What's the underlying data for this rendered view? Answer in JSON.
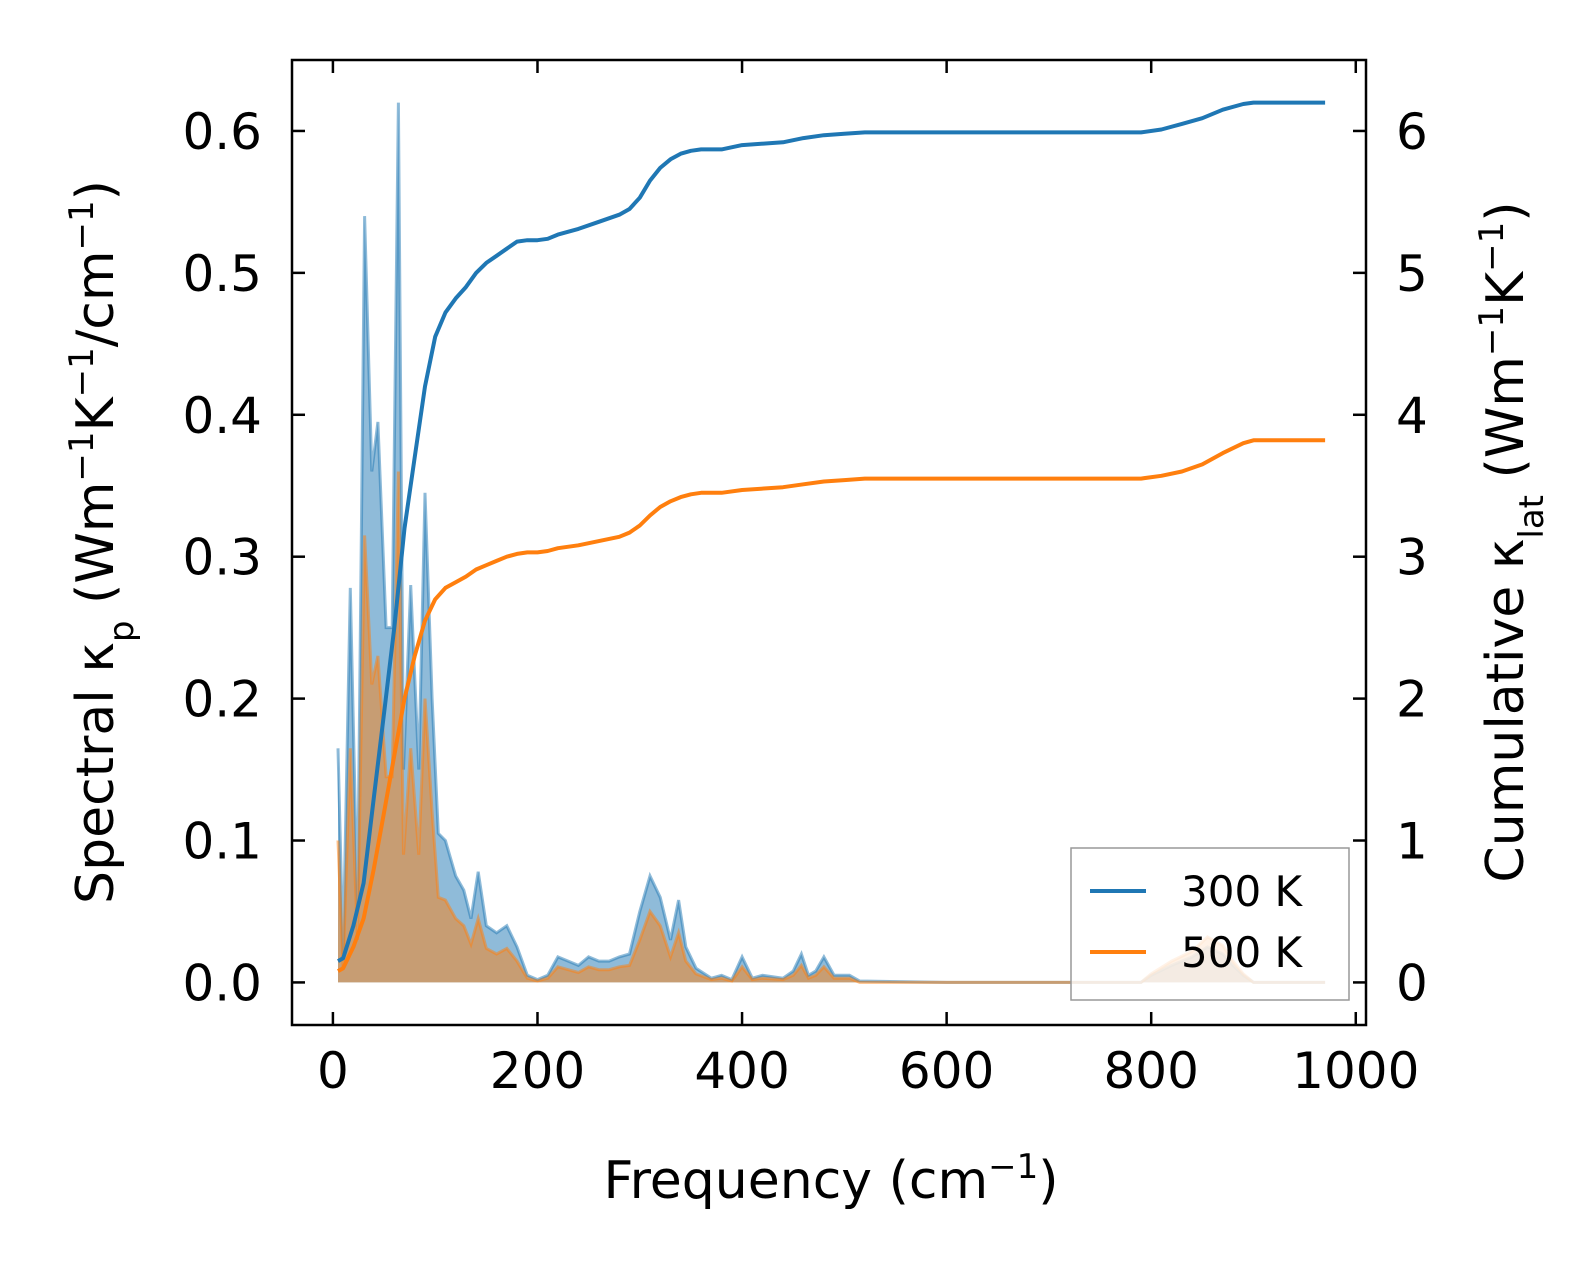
{
  "chart_data": {
    "type": "area+line (dual axis)",
    "xlabel": "Frequency (cm⁻¹)",
    "ylabel_left": "Spectral κₚ (Wm⁻¹K⁻¹/cm⁻¹)",
    "ylabel_right": "Cumulative κₗₐₜ (Wm⁻¹K⁻¹)",
    "xlim": [
      -40,
      1010
    ],
    "ylim_left": [
      -0.03,
      0.65
    ],
    "ylim_right": [
      -0.3,
      6.5
    ],
    "xticks": [
      0,
      200,
      400,
      600,
      800,
      1000
    ],
    "xtick_labels": [
      "0",
      "200",
      "400",
      "600",
      "800",
      "1000"
    ],
    "yticks_left": [
      0.0,
      0.1,
      0.2,
      0.3,
      0.4,
      0.5,
      0.6
    ],
    "ytick_labels_left": [
      "0.0",
      "0.1",
      "0.2",
      "0.3",
      "0.4",
      "0.5",
      "0.6"
    ],
    "yticks_right": [
      0,
      1,
      2,
      3,
      4,
      5,
      6
    ],
    "ytick_labels_right": [
      "0",
      "1",
      "2",
      "3",
      "4",
      "5",
      "6"
    ],
    "legend": {
      "position": "lower-right",
      "entries": [
        "300 K",
        "500 K"
      ]
    },
    "series": [
      {
        "name": "300 K",
        "color": "#1f77b4",
        "spectral": [
          [
            5,
            0.165
          ],
          [
            10,
            0.02
          ],
          [
            17,
            0.278
          ],
          [
            24,
            0.05
          ],
          [
            31,
            0.54
          ],
          [
            38,
            0.36
          ],
          [
            44,
            0.395
          ],
          [
            52,
            0.25
          ],
          [
            58,
            0.25
          ],
          [
            64,
            0.62
          ],
          [
            69,
            0.15
          ],
          [
            76,
            0.28
          ],
          [
            84,
            0.15
          ],
          [
            90,
            0.345
          ],
          [
            97,
            0.2
          ],
          [
            103,
            0.105
          ],
          [
            110,
            0.1
          ],
          [
            120,
            0.075
          ],
          [
            128,
            0.065
          ],
          [
            135,
            0.045
          ],
          [
            142,
            0.078
          ],
          [
            150,
            0.04
          ],
          [
            160,
            0.035
          ],
          [
            170,
            0.04
          ],
          [
            180,
            0.025
          ],
          [
            190,
            0.005
          ],
          [
            200,
            0.002
          ],
          [
            210,
            0.005
          ],
          [
            220,
            0.018
          ],
          [
            230,
            0.015
          ],
          [
            240,
            0.012
          ],
          [
            250,
            0.018
          ],
          [
            260,
            0.015
          ],
          [
            270,
            0.015
          ],
          [
            280,
            0.018
          ],
          [
            290,
            0.02
          ],
          [
            300,
            0.05
          ],
          [
            310,
            0.075
          ],
          [
            320,
            0.06
          ],
          [
            330,
            0.03
          ],
          [
            338,
            0.058
          ],
          [
            345,
            0.025
          ],
          [
            355,
            0.01
          ],
          [
            370,
            0.003
          ],
          [
            380,
            0.005
          ],
          [
            390,
            0.002
          ],
          [
            400,
            0.018
          ],
          [
            410,
            0.003
          ],
          [
            420,
            0.005
          ],
          [
            440,
            0.003
          ],
          [
            450,
            0.008
          ],
          [
            458,
            0.02
          ],
          [
            465,
            0.005
          ],
          [
            472,
            0.008
          ],
          [
            480,
            0.018
          ],
          [
            490,
            0.005
          ],
          [
            505,
            0.005
          ],
          [
            515,
            0.001
          ],
          [
            600,
            0.0
          ],
          [
            700,
            0.0
          ],
          [
            790,
            0.0
          ],
          [
            800,
            0.005
          ],
          [
            820,
            0.012
          ],
          [
            840,
            0.018
          ],
          [
            855,
            0.025
          ],
          [
            870,
            0.02
          ],
          [
            880,
            0.012
          ],
          [
            890,
            0.005
          ],
          [
            900,
            0.0
          ],
          [
            970,
            0.0
          ]
        ],
        "cumulative": [
          [
            5,
            0.15
          ],
          [
            10,
            0.17
          ],
          [
            20,
            0.4
          ],
          [
            30,
            0.7
          ],
          [
            40,
            1.3
          ],
          [
            50,
            1.9
          ],
          [
            60,
            2.5
          ],
          [
            70,
            3.2
          ],
          [
            80,
            3.7
          ],
          [
            90,
            4.2
          ],
          [
            100,
            4.55
          ],
          [
            110,
            4.72
          ],
          [
            120,
            4.82
          ],
          [
            130,
            4.9
          ],
          [
            140,
            5.0
          ],
          [
            150,
            5.07
          ],
          [
            160,
            5.12
          ],
          [
            170,
            5.17
          ],
          [
            180,
            5.22
          ],
          [
            190,
            5.23
          ],
          [
            200,
            5.23
          ],
          [
            210,
            5.24
          ],
          [
            220,
            5.27
          ],
          [
            240,
            5.31
          ],
          [
            260,
            5.36
          ],
          [
            280,
            5.41
          ],
          [
            290,
            5.45
          ],
          [
            300,
            5.53
          ],
          [
            310,
            5.65
          ],
          [
            320,
            5.74
          ],
          [
            330,
            5.8
          ],
          [
            340,
            5.84
          ],
          [
            350,
            5.86
          ],
          [
            360,
            5.87
          ],
          [
            380,
            5.87
          ],
          [
            400,
            5.9
          ],
          [
            440,
            5.92
          ],
          [
            460,
            5.95
          ],
          [
            480,
            5.97
          ],
          [
            500,
            5.98
          ],
          [
            520,
            5.99
          ],
          [
            600,
            5.99
          ],
          [
            700,
            5.99
          ],
          [
            790,
            5.99
          ],
          [
            810,
            6.01
          ],
          [
            830,
            6.05
          ],
          [
            850,
            6.09
          ],
          [
            870,
            6.15
          ],
          [
            890,
            6.19
          ],
          [
            900,
            6.2
          ],
          [
            970,
            6.2
          ]
        ]
      },
      {
        "name": "500 K",
        "color": "#ff7f0e",
        "spectral": [
          [
            5,
            0.1
          ],
          [
            10,
            0.01
          ],
          [
            17,
            0.165
          ],
          [
            24,
            0.03
          ],
          [
            31,
            0.315
          ],
          [
            38,
            0.21
          ],
          [
            44,
            0.23
          ],
          [
            52,
            0.145
          ],
          [
            58,
            0.145
          ],
          [
            64,
            0.36
          ],
          [
            69,
            0.09
          ],
          [
            76,
            0.165
          ],
          [
            84,
            0.09
          ],
          [
            90,
            0.2
          ],
          [
            97,
            0.12
          ],
          [
            103,
            0.06
          ],
          [
            110,
            0.058
          ],
          [
            120,
            0.045
          ],
          [
            128,
            0.04
          ],
          [
            135,
            0.027
          ],
          [
            142,
            0.045
          ],
          [
            150,
            0.024
          ],
          [
            160,
            0.02
          ],
          [
            170,
            0.024
          ],
          [
            180,
            0.015
          ],
          [
            190,
            0.003
          ],
          [
            200,
            0.001
          ],
          [
            210,
            0.003
          ],
          [
            220,
            0.011
          ],
          [
            230,
            0.009
          ],
          [
            240,
            0.007
          ],
          [
            250,
            0.011
          ],
          [
            260,
            0.009
          ],
          [
            270,
            0.009
          ],
          [
            280,
            0.011
          ],
          [
            290,
            0.012
          ],
          [
            300,
            0.03
          ],
          [
            310,
            0.05
          ],
          [
            320,
            0.04
          ],
          [
            330,
            0.018
          ],
          [
            338,
            0.035
          ],
          [
            345,
            0.015
          ],
          [
            355,
            0.006
          ],
          [
            370,
            0.002
          ],
          [
            380,
            0.003
          ],
          [
            390,
            0.001
          ],
          [
            400,
            0.011
          ],
          [
            410,
            0.002
          ],
          [
            420,
            0.003
          ],
          [
            440,
            0.002
          ],
          [
            450,
            0.005
          ],
          [
            458,
            0.012
          ],
          [
            465,
            0.003
          ],
          [
            472,
            0.005
          ],
          [
            480,
            0.011
          ],
          [
            490,
            0.003
          ],
          [
            505,
            0.003
          ],
          [
            515,
            0.0
          ],
          [
            600,
            0.0
          ],
          [
            700,
            0.0
          ],
          [
            790,
            0.0
          ],
          [
            800,
            0.006
          ],
          [
            820,
            0.015
          ],
          [
            840,
            0.022
          ],
          [
            855,
            0.032
          ],
          [
            870,
            0.026
          ],
          [
            880,
            0.015
          ],
          [
            890,
            0.006
          ],
          [
            900,
            0.0
          ],
          [
            970,
            0.0
          ]
        ],
        "cumulative": [
          [
            5,
            0.08
          ],
          [
            10,
            0.1
          ],
          [
            20,
            0.25
          ],
          [
            30,
            0.45
          ],
          [
            40,
            0.8
          ],
          [
            50,
            1.2
          ],
          [
            60,
            1.6
          ],
          [
            70,
            2.0
          ],
          [
            80,
            2.3
          ],
          [
            90,
            2.55
          ],
          [
            100,
            2.7
          ],
          [
            110,
            2.78
          ],
          [
            120,
            2.82
          ],
          [
            130,
            2.86
          ],
          [
            140,
            2.91
          ],
          [
            150,
            2.94
          ],
          [
            160,
            2.97
          ],
          [
            170,
            3.0
          ],
          [
            180,
            3.02
          ],
          [
            190,
            3.03
          ],
          [
            200,
            3.03
          ],
          [
            210,
            3.04
          ],
          [
            220,
            3.06
          ],
          [
            240,
            3.08
          ],
          [
            260,
            3.11
          ],
          [
            280,
            3.14
          ],
          [
            290,
            3.17
          ],
          [
            300,
            3.22
          ],
          [
            310,
            3.29
          ],
          [
            320,
            3.35
          ],
          [
            330,
            3.39
          ],
          [
            340,
            3.42
          ],
          [
            350,
            3.44
          ],
          [
            360,
            3.45
          ],
          [
            380,
            3.45
          ],
          [
            400,
            3.47
          ],
          [
            440,
            3.49
          ],
          [
            460,
            3.51
          ],
          [
            480,
            3.53
          ],
          [
            500,
            3.54
          ],
          [
            520,
            3.55
          ],
          [
            600,
            3.55
          ],
          [
            700,
            3.55
          ],
          [
            790,
            3.55
          ],
          [
            810,
            3.57
          ],
          [
            830,
            3.6
          ],
          [
            850,
            3.65
          ],
          [
            870,
            3.73
          ],
          [
            890,
            3.8
          ],
          [
            900,
            3.82
          ],
          [
            970,
            3.82
          ]
        ]
      }
    ]
  }
}
